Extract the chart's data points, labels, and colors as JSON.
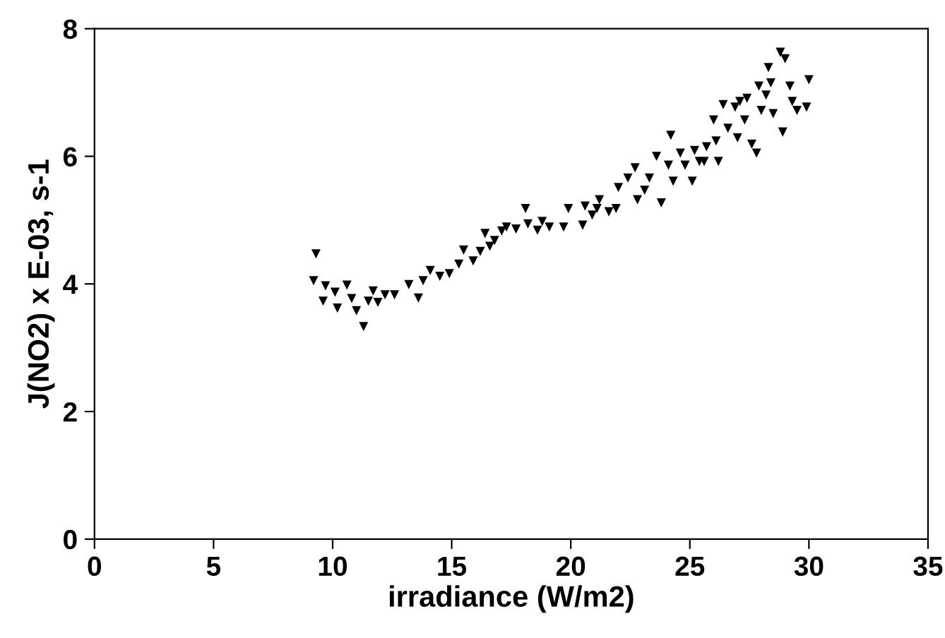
{
  "chart_data": {
    "type": "scatter",
    "xlabel": "irradiance (W/m2)",
    "ylabel": "J(NO2) x E-03, s-1",
    "xlim": [
      0,
      35
    ],
    "xticks": [
      0,
      5,
      10,
      15,
      20,
      25,
      30,
      35
    ],
    "ylim": [
      0,
      8
    ],
    "yticks": [
      0,
      2,
      4,
      6,
      8
    ],
    "grid": false,
    "marker": "triangle",
    "series": [
      {
        "color": "#000000",
        "x": [
          9.3,
          9.2,
          9.7,
          9.6,
          10.1,
          10.2,
          10.6,
          10.8,
          11.0,
          11.3,
          11.5,
          11.7,
          11.9,
          12.2,
          12.6,
          13.2,
          13.6,
          13.8,
          14.1,
          14.5,
          14.9,
          15.3,
          15.5,
          15.9,
          16.2,
          16.4,
          16.6,
          16.8,
          17.1,
          17.3,
          17.7,
          18.1,
          18.2,
          18.6,
          18.8,
          19.1,
          19.7,
          19.9,
          20.5,
          20.6,
          20.9,
          21.1,
          21.2,
          21.6,
          21.9,
          22.0,
          22.4,
          22.7,
          22.8,
          23.1,
          23.3,
          23.6,
          23.8,
          24.1,
          24.2,
          24.3,
          24.6,
          24.8,
          25.1,
          25.2,
          25.4,
          25.6,
          25.7,
          26.0,
          26.1,
          26.2,
          26.4,
          26.6,
          26.9,
          27.0,
          27.1,
          27.3,
          27.4,
          27.6,
          27.8,
          27.9,
          28.0,
          28.2,
          28.3,
          28.4,
          28.5,
          28.8,
          28.9,
          29.0,
          29.2,
          29.3,
          29.5,
          29.9,
          30.0
        ],
        "values": [
          4.47,
          4.05,
          3.97,
          3.73,
          3.87,
          3.62,
          3.98,
          3.77,
          3.58,
          3.33,
          3.73,
          3.89,
          3.71,
          3.83,
          3.83,
          3.99,
          3.78,
          4.05,
          4.21,
          4.12,
          4.16,
          4.31,
          4.53,
          4.36,
          4.51,
          4.79,
          4.59,
          4.68,
          4.83,
          4.89,
          4.86,
          5.18,
          4.94,
          4.84,
          4.98,
          4.89,
          4.89,
          5.18,
          4.92,
          5.22,
          5.08,
          5.18,
          5.32,
          5.13,
          5.18,
          5.51,
          5.66,
          5.82,
          5.32,
          5.47,
          5.66,
          6.0,
          5.27,
          5.86,
          6.33,
          5.61,
          6.05,
          5.86,
          5.61,
          6.09,
          5.92,
          5.92,
          6.15,
          6.57,
          6.24,
          5.92,
          6.81,
          6.44,
          6.77,
          6.29,
          6.86,
          6.57,
          6.91,
          6.19,
          6.05,
          7.1,
          6.72,
          6.96,
          7.39,
          7.15,
          6.67,
          7.63,
          6.38,
          7.53,
          7.1,
          6.86,
          6.72,
          6.77,
          7.2
        ]
      }
    ]
  }
}
